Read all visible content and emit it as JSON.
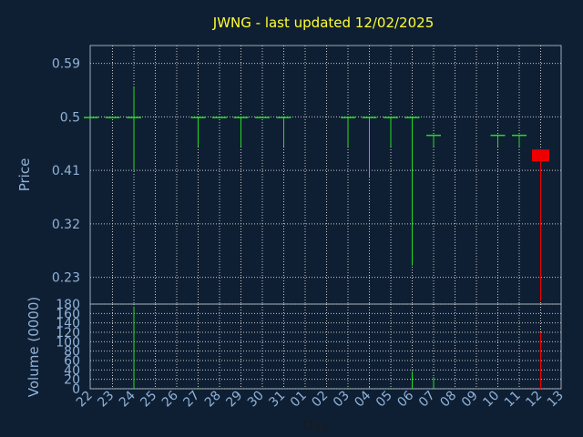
{
  "chart_data": [
    {
      "type": "candlestick",
      "title": "JWNG - last updated 12/02/2025",
      "ylabel": "Price",
      "xlabel": "Day",
      "ylim": [
        0.185,
        0.62
      ],
      "yticks": [
        "0.23",
        "0.32",
        "0.41",
        "0.5",
        "0.59"
      ],
      "ytick_values": [
        0.23,
        0.32,
        0.41,
        0.5,
        0.59
      ],
      "grid": true,
      "colors": {
        "up": "#22dd22",
        "down": "#ee0000"
      },
      "x": [
        "22",
        "23",
        "24",
        "25",
        "26",
        "27",
        "28",
        "29",
        "30",
        "31",
        "01",
        "02",
        "03",
        "04",
        "05",
        "06",
        "07",
        "08",
        "09",
        "10",
        "11",
        "12",
        "13"
      ],
      "candles": [
        {
          "day": "22",
          "open": 0.5,
          "high": 0.5,
          "low": 0.5,
          "close": 0.5
        },
        {
          "day": "23",
          "open": 0.5,
          "high": 0.5,
          "low": 0.5,
          "close": 0.5
        },
        {
          "day": "24",
          "open": 0.5,
          "high": 0.55,
          "low": 0.41,
          "close": 0.5
        },
        {
          "day": "27",
          "open": 0.5,
          "high": 0.5,
          "low": 0.45,
          "close": 0.5
        },
        {
          "day": "28",
          "open": 0.5,
          "high": 0.5,
          "low": 0.5,
          "close": 0.5
        },
        {
          "day": "29",
          "open": 0.5,
          "high": 0.5,
          "low": 0.45,
          "close": 0.5
        },
        {
          "day": "30",
          "open": 0.5,
          "high": 0.5,
          "low": 0.5,
          "close": 0.5
        },
        {
          "day": "31",
          "open": 0.5,
          "high": 0.5,
          "low": 0.45,
          "close": 0.5
        },
        {
          "day": "03",
          "open": 0.5,
          "high": 0.5,
          "low": 0.45,
          "close": 0.5
        },
        {
          "day": "04",
          "open": 0.5,
          "high": 0.5,
          "low": 0.4,
          "close": 0.5
        },
        {
          "day": "05",
          "open": 0.5,
          "high": 0.5,
          "low": 0.45,
          "close": 0.5
        },
        {
          "day": "06",
          "open": 0.5,
          "high": 0.5,
          "low": 0.25,
          "close": 0.5
        },
        {
          "day": "07",
          "open": 0.47,
          "high": 0.47,
          "low": 0.45,
          "close": 0.47
        },
        {
          "day": "10",
          "open": 0.47,
          "high": 0.47,
          "low": 0.45,
          "close": 0.47
        },
        {
          "day": "11",
          "open": 0.47,
          "high": 0.47,
          "low": 0.45,
          "close": 0.47
        },
        {
          "day": "12",
          "open": 0.445,
          "high": 0.445,
          "low": 0.19,
          "close": 0.425
        }
      ]
    },
    {
      "type": "bar",
      "ylabel": "Volume (0000)",
      "ylim": [
        0,
        180
      ],
      "yticks": [
        "0",
        "20",
        "40",
        "60",
        "80",
        "100",
        "120",
        "140",
        "160",
        "180"
      ],
      "ytick_values": [
        0,
        20,
        40,
        60,
        80,
        100,
        120,
        140,
        160,
        180
      ],
      "grid": true,
      "bars": [
        {
          "day": "22",
          "value": 0
        },
        {
          "day": "23",
          "value": 0
        },
        {
          "day": "24",
          "value": 175
        },
        {
          "day": "27",
          "value": 2
        },
        {
          "day": "28",
          "value": 0
        },
        {
          "day": "29",
          "value": 0
        },
        {
          "day": "30",
          "value": 0
        },
        {
          "day": "31",
          "value": 0
        },
        {
          "day": "03",
          "value": 2
        },
        {
          "day": "04",
          "value": 4
        },
        {
          "day": "05",
          "value": 2
        },
        {
          "day": "06",
          "value": 37
        },
        {
          "day": "07",
          "value": 25
        },
        {
          "day": "10",
          "value": 0
        },
        {
          "day": "11",
          "value": 0
        },
        {
          "day": "12",
          "value": 120
        }
      ]
    }
  ]
}
